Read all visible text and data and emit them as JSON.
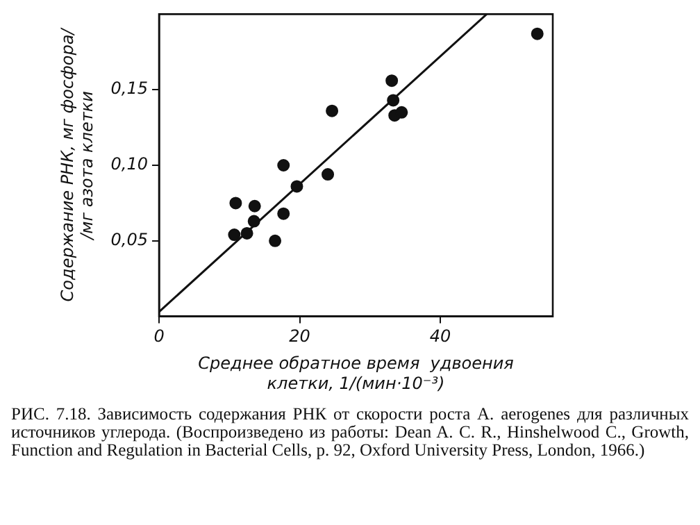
{
  "chart_data": {
    "type": "scatter",
    "xlabel": "Среднее обратное время  удвоения клетки, 1/(мин·10⁻³)",
    "ylabel": "Содержание РНК, мг фосфора/ /мг азота клетки",
    "xlim": [
      0,
      56
    ],
    "ylim": [
      0,
      0.2
    ],
    "xticks": [
      0,
      20,
      40
    ],
    "yticks": [
      {
        "value": 0.05,
        "label": "0,05"
      },
      {
        "value": 0.1,
        "label": "0,10"
      },
      {
        "value": 0.15,
        "label": "0,15"
      }
    ],
    "grid": false,
    "legend": false,
    "marker": "circle",
    "series": [
      {
        "type": "scatter",
        "color": "#111111",
        "x": [
          10.9,
          10.7,
          12.5,
          13.5,
          13.6,
          16.5,
          17.7,
          17.7,
          19.6,
          24.0,
          24.6,
          33.1,
          33.3,
          33.5,
          34.5,
          53.8
        ],
        "values": [
          0.075,
          0.054,
          0.055,
          0.063,
          0.073,
          0.05,
          0.1,
          0.068,
          0.086,
          0.094,
          0.136,
          0.156,
          0.143,
          0.133,
          0.135,
          0.187
        ]
      },
      {
        "type": "line",
        "color": "#111111",
        "marker": "none",
        "x": [
          0,
          46.6
        ],
        "values": [
          0.003,
          0.2
        ]
      }
    ],
    "annotations": [
      "РИС. 7.18. Зависимость содержания РНК от скорости роста A. aerogenes для различных источников углерода. (Воспроизведено из работы: Dean A. C. R., Hinshelwood C., Growth, Function and Regulation in Bacterial Cells, p. 92, Oxford University Press, London, 1966.)"
    ]
  }
}
